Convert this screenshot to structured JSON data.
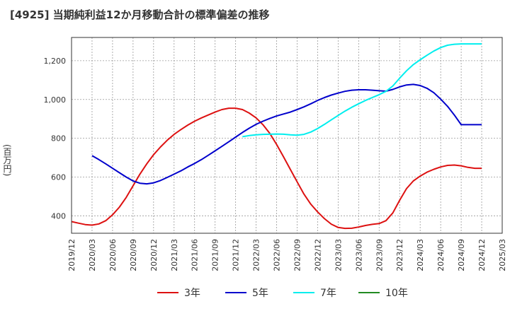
{
  "chart_data": {
    "type": "line",
    "title": "[4925]  当期純利益12か月移動合計の標準偏差の推移",
    "ylabel": "(百万円)",
    "xlabel": "",
    "ylim": [
      310,
      1320
    ],
    "y_ticks": [
      400,
      600,
      800,
      1000,
      1200
    ],
    "y_tick_labels": [
      "400",
      "600",
      "800",
      "1,000",
      "1,200"
    ],
    "x_tick_labels": [
      "2019/12",
      "2020/03",
      "2020/06",
      "2020/09",
      "2020/12",
      "2021/03",
      "2021/06",
      "2021/09",
      "2021/12",
      "2022/03",
      "2022/06",
      "2022/09",
      "2022/12",
      "2023/03",
      "2023/06",
      "2023/09",
      "2023/12",
      "2024/03",
      "2024/06",
      "2024/09",
      "2024/12",
      "2025/03"
    ],
    "grid": true,
    "legend_position": "bottom",
    "series": [
      {
        "name": "3年",
        "color": "#dd1111",
        "x": [
          "2019/12",
          "2020/01",
          "2020/02",
          "2020/03",
          "2020/04",
          "2020/05",
          "2020/06",
          "2020/07",
          "2020/08",
          "2020/09",
          "2020/10",
          "2020/11",
          "2020/12",
          "2021/01",
          "2021/02",
          "2021/03",
          "2021/04",
          "2021/05",
          "2021/06",
          "2021/07",
          "2021/08",
          "2021/09",
          "2021/10",
          "2021/11",
          "2021/12",
          "2022/01",
          "2022/02",
          "2022/03",
          "2022/04",
          "2022/05",
          "2022/06",
          "2022/07",
          "2022/08",
          "2022/09",
          "2022/10",
          "2022/11",
          "2022/12",
          "2023/01",
          "2023/02",
          "2023/03",
          "2023/04",
          "2023/05",
          "2023/06",
          "2023/07",
          "2023/08",
          "2023/09",
          "2023/10",
          "2023/11",
          "2023/12",
          "2024/01",
          "2024/02",
          "2024/03",
          "2024/04",
          "2024/05",
          "2024/06",
          "2024/07",
          "2024/08",
          "2024/09",
          "2024/10",
          "2024/11",
          "2024/12"
        ],
        "values": [
          370,
          362,
          355,
          352,
          358,
          375,
          405,
          445,
          495,
          555,
          615,
          668,
          715,
          755,
          790,
          820,
          845,
          868,
          888,
          905,
          920,
          935,
          948,
          955,
          955,
          948,
          930,
          905,
          870,
          825,
          768,
          705,
          640,
          575,
          512,
          460,
          420,
          385,
          357,
          340,
          335,
          336,
          342,
          350,
          356,
          360,
          375,
          415,
          480,
          540,
          580,
          605,
          625,
          640,
          652,
          660,
          662,
          658,
          650,
          645,
          645
        ]
      },
      {
        "name": "5年",
        "color": "#0000cc",
        "x": [
          "2020/03",
          "2020/04",
          "2020/05",
          "2020/06",
          "2020/07",
          "2020/08",
          "2020/09",
          "2020/10",
          "2020/11",
          "2020/12",
          "2021/01",
          "2021/02",
          "2021/03",
          "2021/04",
          "2021/05",
          "2021/06",
          "2021/07",
          "2021/08",
          "2021/09",
          "2021/10",
          "2021/11",
          "2021/12",
          "2022/01",
          "2022/02",
          "2022/03",
          "2022/04",
          "2022/05",
          "2022/06",
          "2022/07",
          "2022/08",
          "2022/09",
          "2022/10",
          "2022/11",
          "2022/12",
          "2023/01",
          "2023/02",
          "2023/03",
          "2023/04",
          "2023/05",
          "2023/06",
          "2023/07",
          "2023/08",
          "2023/09",
          "2023/10",
          "2023/11",
          "2023/12",
          "2024/01",
          "2024/02",
          "2024/03",
          "2024/04",
          "2024/05",
          "2024/06",
          "2024/07",
          "2024/08",
          "2024/09",
          "2024/10",
          "2024/11",
          "2024/12"
        ],
        "values": [
          710,
          690,
          668,
          645,
          622,
          600,
          580,
          568,
          565,
          570,
          582,
          598,
          615,
          632,
          652,
          670,
          690,
          712,
          735,
          758,
          782,
          806,
          830,
          852,
          872,
          888,
          902,
          915,
          925,
          935,
          948,
          962,
          978,
          995,
          1010,
          1023,
          1033,
          1042,
          1048,
          1050,
          1050,
          1048,
          1045,
          1043,
          1052,
          1065,
          1075,
          1078,
          1072,
          1058,
          1035,
          1002,
          965,
          920,
          870,
          870,
          870,
          870
        ]
      },
      {
        "name": "7年",
        "color": "#00eeee",
        "x": [
          "2022/01",
          "2022/02",
          "2022/03",
          "2022/04",
          "2022/05",
          "2022/06",
          "2022/07",
          "2022/08",
          "2022/09",
          "2022/10",
          "2022/11",
          "2022/12",
          "2023/01",
          "2023/02",
          "2023/03",
          "2023/04",
          "2023/05",
          "2023/06",
          "2023/07",
          "2023/08",
          "2023/09",
          "2023/10",
          "2023/11",
          "2023/12",
          "2024/01",
          "2024/02",
          "2024/03",
          "2024/04",
          "2024/05",
          "2024/06",
          "2024/07",
          "2024/08",
          "2024/09",
          "2024/10",
          "2024/11",
          "2024/12"
        ],
        "values": [
          808,
          814,
          818,
          820,
          821,
          822,
          821,
          818,
          816,
          820,
          832,
          850,
          872,
          895,
          918,
          940,
          960,
          978,
          995,
          1010,
          1025,
          1042,
          1070,
          1110,
          1148,
          1180,
          1205,
          1228,
          1250,
          1268,
          1280,
          1285,
          1287,
          1287,
          1287,
          1287
        ]
      },
      {
        "name": "10年",
        "color": "#228b22",
        "x": [],
        "values": []
      }
    ]
  },
  "legend": [
    {
      "label": "3年",
      "color": "#dd1111"
    },
    {
      "label": "5年",
      "color": "#0000cc"
    },
    {
      "label": "7年",
      "color": "#00eeee"
    },
    {
      "label": "10年",
      "color": "#228b22"
    }
  ]
}
